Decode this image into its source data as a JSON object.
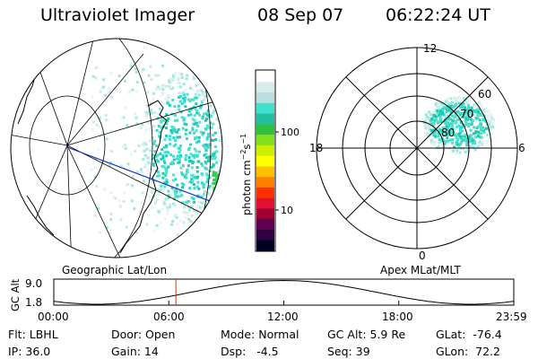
{
  "header": {
    "instrument": "Ultraviolet Imager",
    "date": "08 Sep 07",
    "time": "06:22:24 UT"
  },
  "colorbar": {
    "unit_label": "photon cm",
    "unit_exp1": "−2",
    "unit_mid": "s",
    "unit_exp2": "−1",
    "ticks": [
      "100",
      "10"
    ],
    "colors": [
      "#ffffff",
      "#d8ecec",
      "#b8e0e0",
      "#40e0d0",
      "#20c0a0",
      "#30c040",
      "#80e020",
      "#ccf000",
      "#ffff00",
      "#ffc000",
      "#ff8000",
      "#ff3000",
      "#e01030",
      "#a00030",
      "#600050",
      "#300040",
      "#000020"
    ]
  },
  "left_map": {
    "caption": "Geographic Lat/Lon"
  },
  "polar_plot": {
    "caption": "Apex MLat/MLT",
    "mlt_labels": [
      "12",
      "18",
      "6",
      "0"
    ],
    "lat_labels": [
      "60",
      "70",
      "80"
    ]
  },
  "timeline": {
    "ylabel": "GC Alt",
    "yticks": [
      "9.0",
      "1.8"
    ],
    "xticks": [
      "00:00",
      "06:00",
      "12:00",
      "18:00",
      "23:59"
    ],
    "current_time_hours": 6.37
  },
  "status": {
    "filter": "Flt: LBHL",
    "ip": "IP: 36.0",
    "door": "Door: Open",
    "gain": "Gain: 14",
    "mode": "Mode: Normal",
    "dsp": "Dsp:   -4.5",
    "gc_alt": "GC Alt: 5.9 Re",
    "seq": "Seq: 39",
    "glat": "GLat:  -76.4",
    "glon": "GLon:  72.2"
  }
}
